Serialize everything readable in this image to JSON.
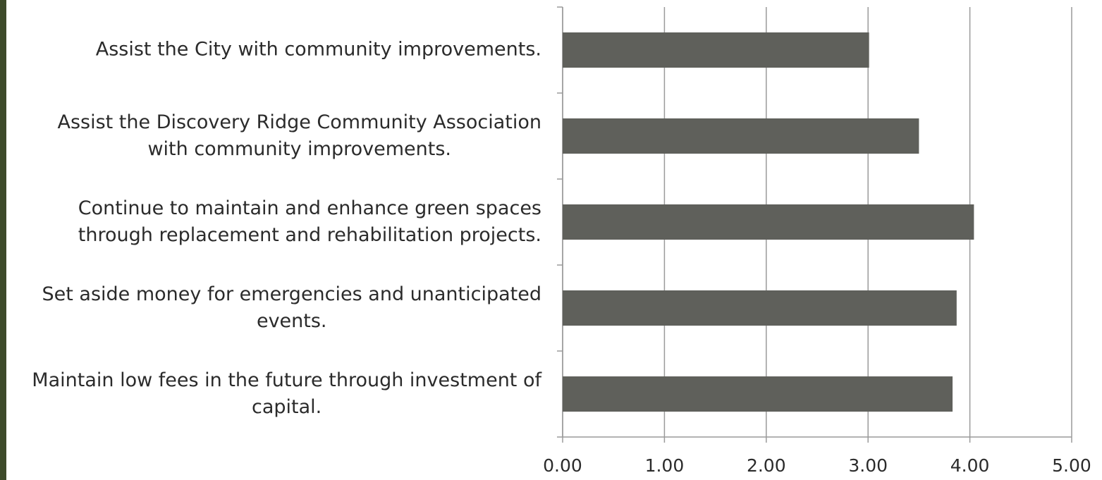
{
  "chart_data": {
    "type": "bar",
    "orientation": "horizontal",
    "categories": [
      "Assist the City with community improvements.",
      "Assist the Discovery Ridge Community Association\nwith community improvements.",
      "Continue to maintain and enhance green spaces\nthrough replacement and rehabilitation projects.",
      "Set aside money for emergencies and unanticipated\nevents.",
      "Maintain low fees in the future through investment of\ncapital."
    ],
    "values": [
      3.01,
      3.5,
      4.04,
      3.87,
      3.83
    ],
    "color": "#5f605b",
    "xlim": [
      0,
      5
    ],
    "xticks": [
      {
        "value": 0,
        "label": "0.00"
      },
      {
        "value": 1,
        "label": "1.00"
      },
      {
        "value": 2,
        "label": "2.00"
      },
      {
        "value": 3,
        "label": "3.00"
      },
      {
        "value": 4,
        "label": "4.00"
      },
      {
        "value": 5,
        "label": "5.00"
      }
    ],
    "grid": true
  }
}
